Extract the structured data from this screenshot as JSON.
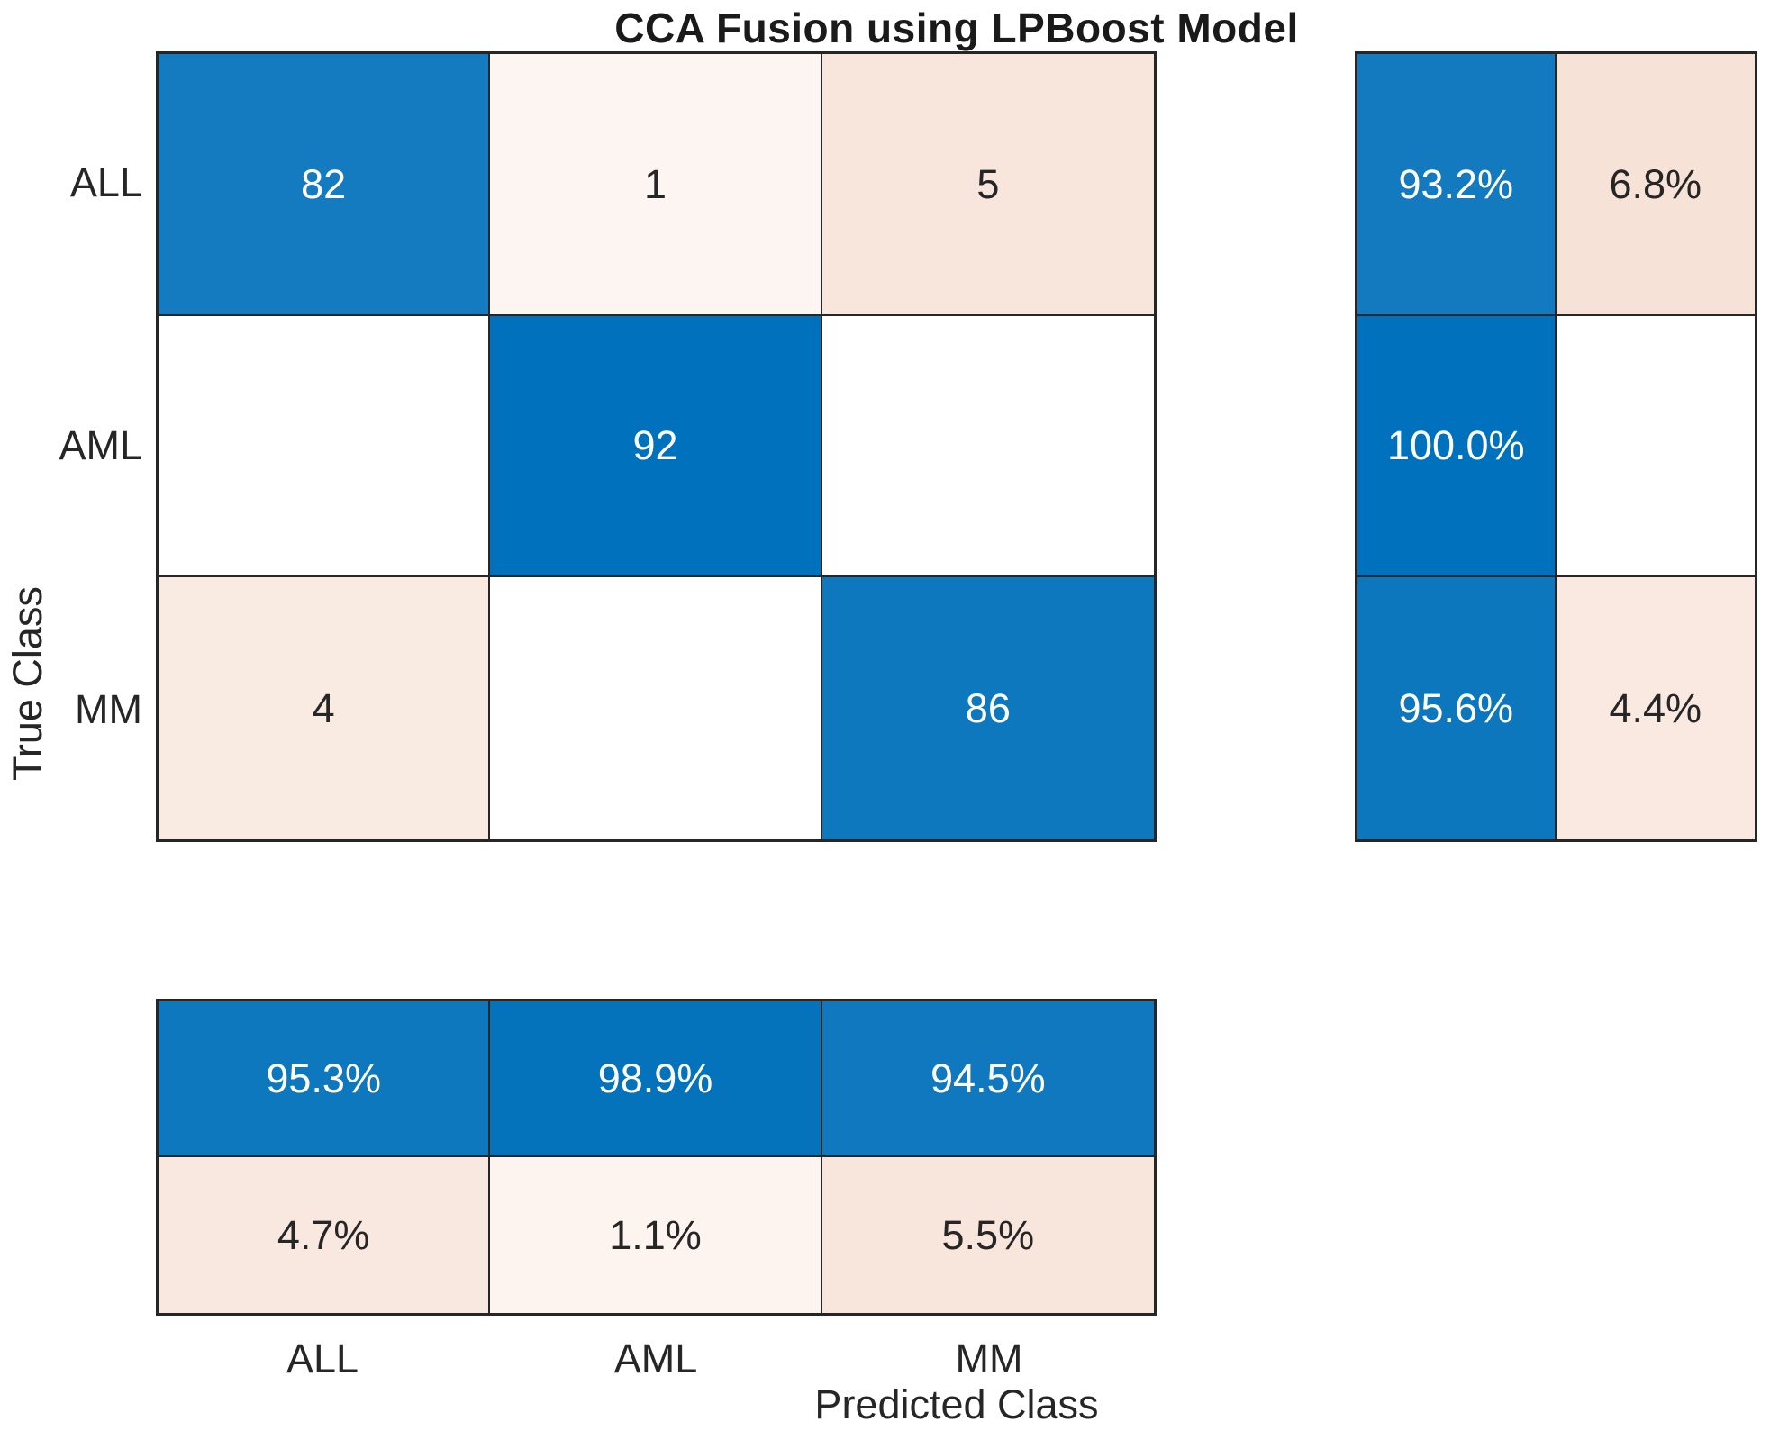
{
  "title": "CCA Fusion using LPBoost Model",
  "axes": {
    "x_label": "Predicted Class",
    "y_label": "True Class",
    "classes": [
      "ALL",
      "AML",
      "MM"
    ]
  },
  "colors": {
    "diagonal_base": "#0072bd",
    "off_diagonal_base": "#d95319",
    "grid_line": "#262626",
    "text_dark": "#262626",
    "text_light": "#ffffff",
    "background": "#ffffff"
  },
  "chart_data": {
    "type": "heatmap",
    "subtype": "confusion-matrix",
    "title": "CCA Fusion using LPBoost Model",
    "xlabel": "Predicted Class",
    "ylabel": "True Class",
    "classes": [
      "ALL",
      "AML",
      "MM"
    ],
    "counts_rows_true_cols_predicted": [
      [
        82,
        1,
        5
      ],
      [
        0,
        92,
        0
      ],
      [
        4,
        0,
        86
      ]
    ],
    "row_summary_right_panel": {
      "true_positive_rate_column": [
        "93.2%",
        "100.0%",
        "95.6%"
      ],
      "false_negative_rate_column": [
        "6.8%",
        "",
        "4.4%"
      ]
    },
    "column_summary_bottom_panel": {
      "positive_predictive_value_row": [
        "95.3%",
        "98.9%",
        "94.5%"
      ],
      "false_discovery_rate_row": [
        "4.7%",
        "1.1%",
        "5.5%"
      ]
    },
    "legend_position": "none",
    "grid": "on"
  },
  "main_cells": [
    {
      "label": "82",
      "bg": "#147bc1",
      "fg": "#ffffff"
    },
    {
      "label": "1",
      "bg": "#fdf5f1",
      "fg": "#262626"
    },
    {
      "label": "5",
      "bg": "#f8e6dd",
      "fg": "#262626"
    },
    {
      "label": "",
      "bg": "#ffffff",
      "fg": "#262626"
    },
    {
      "label": "92",
      "bg": "#0072bd",
      "fg": "#ffffff"
    },
    {
      "label": "",
      "bg": "#ffffff",
      "fg": "#262626"
    },
    {
      "label": "4",
      "bg": "#f9eae2",
      "fg": "#262626"
    },
    {
      "label": "",
      "bg": "#ffffff",
      "fg": "#262626"
    },
    {
      "label": "86",
      "bg": "#0e78bf",
      "fg": "#ffffff"
    }
  ],
  "row_summary_cells": [
    {
      "label": "93.2%",
      "bg": "#137ac0",
      "fg": "#ffffff"
    },
    {
      "label": "6.8%",
      "bg": "#f7e2d7",
      "fg": "#262626"
    },
    {
      "label": "100.0%",
      "bg": "#0072bd",
      "fg": "#ffffff"
    },
    {
      "label": "",
      "bg": "#ffffff",
      "fg": "#262626"
    },
    {
      "label": "95.6%",
      "bg": "#0d77be",
      "fg": "#ffffff"
    },
    {
      "label": "4.4%",
      "bg": "#f9e9e1",
      "fg": "#262626"
    }
  ],
  "col_summary_cells": [
    {
      "label": "95.3%",
      "bg": "#0e78be",
      "fg": "#ffffff"
    },
    {
      "label": "98.9%",
      "bg": "#0473bc",
      "fg": "#ffffff"
    },
    {
      "label": "94.5%",
      "bg": "#0f78be",
      "fg": "#ffffff"
    },
    {
      "label": "4.7%",
      "bg": "#f9e8e0",
      "fg": "#262626"
    },
    {
      "label": "1.1%",
      "bg": "#fdf4f0",
      "fg": "#262626"
    },
    {
      "label": "5.5%",
      "bg": "#f8e6dd",
      "fg": "#262626"
    }
  ]
}
